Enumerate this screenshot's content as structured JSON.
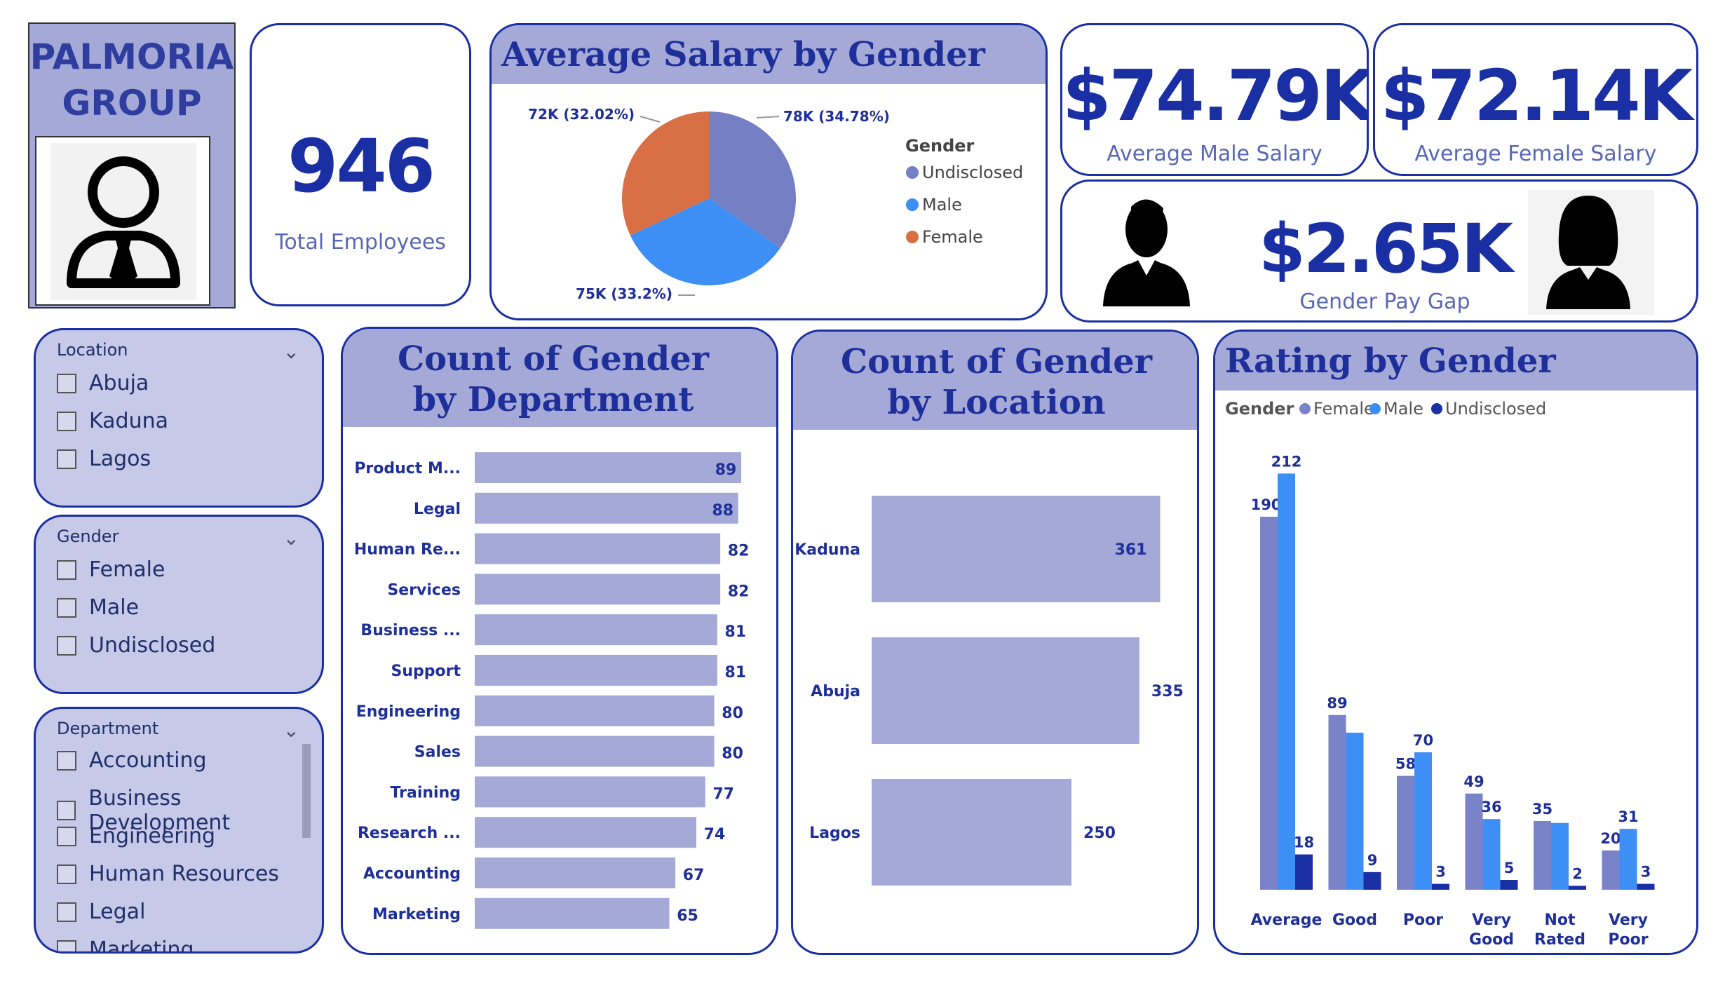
{
  "brand": {
    "line1": "PALMORIA",
    "line2": "GROUP"
  },
  "kpis": {
    "total_employees": {
      "value": "946",
      "label": "Total Employees"
    },
    "avg_male": {
      "value": "$74.79K",
      "label": "Average Male Salary"
    },
    "avg_female": {
      "value": "$72.14K",
      "label": "Average Female Salary"
    },
    "pay_gap": {
      "value": "$2.65K",
      "label": "Gender Pay Gap"
    }
  },
  "icons": {
    "logo": "person-tie-icon",
    "male": "male-silhouette-icon",
    "female": "female-silhouette-icon",
    "chevron": "chevron-down-icon"
  },
  "slicers": {
    "location": {
      "title": "Location",
      "items": [
        "Abuja",
        "Kaduna",
        "Lagos"
      ]
    },
    "gender": {
      "title": "Gender",
      "items": [
        "Female",
        "Male",
        "Undisclosed"
      ]
    },
    "department": {
      "title": "Department",
      "items": [
        "Accounting",
        "Business Development",
        "Engineering",
        "Human Resources",
        "Legal",
        "Marketing"
      ]
    }
  },
  "colors": {
    "undisclosed_pie": "#7580c4",
    "male": "#3d8ef5",
    "female_pie": "#d97045",
    "female_bar": "#7b83c8",
    "undisclosed_bar": "#1a2fa3",
    "bar": "#a4a9d8",
    "accent": "#1a2fa3"
  },
  "chart_data": [
    {
      "type": "pie",
      "title": "Average Salary by Gender",
      "legend_title": "Gender",
      "legend_position": "right",
      "slices": [
        {
          "name": "Undisclosed",
          "value": 78,
          "percent": 34.78,
          "label": "78K (34.78%)"
        },
        {
          "name": "Male",
          "value": 75,
          "percent": 33.2,
          "label": "75K (33.2%)"
        },
        {
          "name": "Female",
          "value": 72,
          "percent": 32.02,
          "label": "72K (32.02%)"
        }
      ]
    },
    {
      "type": "bar",
      "orientation": "horizontal",
      "title": "Count of Gender by Department",
      "categories": [
        "Product M...",
        "Legal",
        "Human Re...",
        "Services",
        "Business ...",
        "Support",
        "Engineering",
        "Sales",
        "Training",
        "Research ...",
        "Accounting",
        "Marketing"
      ],
      "values": [
        89,
        88,
        82,
        82,
        81,
        81,
        80,
        80,
        77,
        74,
        67,
        65
      ],
      "xlim": [
        0,
        100
      ]
    },
    {
      "type": "bar",
      "orientation": "horizontal",
      "title": "Count of Gender by Location",
      "categories": [
        "Kaduna",
        "Abuja",
        "Lagos"
      ],
      "values": [
        361,
        335,
        250
      ],
      "xlim": [
        0,
        400
      ]
    },
    {
      "type": "bar",
      "title": "Rating by Gender",
      "legend_title": "Gender",
      "legend_position": "top-left",
      "categories": [
        "Average",
        "Good",
        "Poor",
        "Very Good",
        "Not Rated",
        "Very Poor"
      ],
      "series": [
        {
          "name": "Female",
          "values": [
            190,
            89,
            58,
            49,
            35,
            20
          ]
        },
        {
          "name": "Male",
          "values": [
            212,
            80,
            70,
            36,
            34,
            31
          ]
        },
        {
          "name": "Undisclosed",
          "values": [
            18,
            9,
            3,
            5,
            2,
            3
          ]
        }
      ],
      "value_labels": [
        [
          "190",
          "89",
          "58",
          "49",
          "35",
          "20"
        ],
        [
          "212",
          "",
          "70",
          "36",
          "",
          "31"
        ],
        [
          "18",
          "9",
          "3",
          "5",
          "2",
          "3"
        ]
      ],
      "ylim": [
        0,
        230
      ]
    }
  ]
}
